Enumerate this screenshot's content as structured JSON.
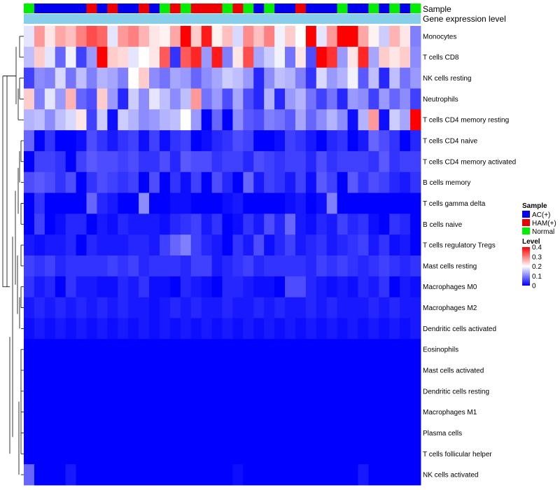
{
  "chart_data": {
    "type": "heatmap",
    "annotation_labels": {
      "sample": "Sample",
      "gene": "Gene expression level"
    },
    "rows": [
      "Monocytes",
      "T cells CD8",
      "NK cells resting",
      "Neutrophils",
      "T cells CD4 memory resting",
      "T cells CD4 naive",
      "T cells CD4 memory activated",
      "B cells memory",
      "T cells gamma delta",
      "B cells naive",
      "T cells regulatory  Tregs",
      "Mast cells resting",
      "Macrophages M0",
      "Macrophages M2",
      "Dendritic cells activated",
      "Eosinophils",
      "Mast cells activated",
      "Dendritic cells resting",
      "Macrophages M1",
      "Plasma cells",
      "T cells follicular helper",
      "NK cells activated"
    ],
    "samples": [
      "Normal",
      "AC(+)",
      "AC(+)",
      "AC(+)",
      "AC(+)",
      "AC(+)",
      "HAM(+)",
      "AC(+)",
      "HAM(+)",
      "AC(+)",
      "AC(+)",
      "HAM(+)",
      "AC(+)",
      "Normal",
      "HAM(+)",
      "Normal",
      "HAM(+)",
      "HAM(+)",
      "HAM(+)",
      "Normal",
      "HAM(+)",
      "Normal",
      "AC(+)",
      "Normal",
      "AC(+)",
      "AC(+)",
      "HAM(+)",
      "AC(+)",
      "AC(+)",
      "AC(+)",
      "Normal",
      "AC(+)",
      "AC(+)",
      "Normal",
      "AC(+)",
      "Normal",
      "AC(+)",
      "Normal"
    ],
    "values": [
      [
        0.18,
        0.28,
        0.22,
        0.27,
        0.25,
        0.3,
        0.34,
        0.32,
        0.18,
        0.28,
        0.3,
        0.26,
        0.22,
        0.21,
        0.27,
        0.4,
        0.24,
        0.38,
        0.21,
        0.25,
        0.17,
        0.29,
        0.25,
        0.3,
        0.19,
        0.24,
        0.2,
        0.4,
        0.18,
        0.28,
        0.41,
        0.43,
        0.27,
        0.21,
        0.16,
        0.26,
        0.22,
        0.1
      ],
      [
        0.15,
        0.24,
        0.18,
        0.08,
        0.19,
        0.05,
        0.12,
        0.4,
        0.24,
        0.23,
        0.18,
        0.2,
        0.22,
        0.33,
        0.04,
        0.33,
        0.37,
        0.12,
        0.38,
        0.1,
        0.22,
        0.34,
        0.13,
        0.16,
        0.19,
        0.09,
        0.22,
        0.06,
        0.4,
        0.36,
        0.12,
        0.22,
        0.37,
        0.13,
        0.24,
        0.22,
        0.24,
        0.11
      ],
      [
        0.05,
        0.11,
        0.1,
        0.17,
        0.09,
        0.15,
        0.1,
        0.14,
        0.13,
        0.1,
        0.2,
        0.24,
        0.11,
        0.09,
        0.13,
        0.12,
        0.08,
        0.11,
        0.13,
        0.16,
        0.15,
        0.12,
        0.03,
        0.11,
        0.15,
        0.14,
        0.1,
        0.04,
        0.17,
        0.12,
        0.14,
        0.19,
        0.07,
        0.15,
        0.03,
        0.15,
        0.09,
        0.12
      ],
      [
        0.24,
        0.1,
        0.18,
        0.12,
        0.26,
        0.08,
        0.06,
        0.24,
        0.12,
        0.03,
        0.16,
        0.11,
        0.18,
        0.15,
        0.11,
        0.15,
        0.28,
        0.09,
        0.12,
        0.06,
        0.13,
        0.06,
        0.03,
        0.14,
        0.03,
        0.12,
        0.14,
        0.09,
        0.05,
        0.09,
        0.03,
        0.12,
        0.11,
        0.05,
        0.12,
        0.08,
        0.11,
        0.05
      ],
      [
        0.14,
        0.15,
        0.11,
        0.15,
        0.17,
        0.22,
        0.05,
        0.16,
        0.01,
        0.16,
        0.14,
        0.11,
        0.12,
        0.14,
        0.15,
        0.2,
        0.12,
        0.0,
        0.08,
        0.0,
        0.11,
        0.07,
        0.06,
        0.1,
        0.09,
        0.07,
        0.13,
        0.08,
        0.11,
        0.14,
        0.11,
        0.01,
        0.14,
        0.28,
        0.01,
        0.16,
        0.13,
        0.4
      ],
      [
        0.08,
        0.0,
        0.04,
        0.0,
        0.0,
        0.01,
        0.06,
        0.04,
        0.02,
        0.04,
        0.05,
        0.01,
        0.05,
        0.01,
        0.04,
        0.05,
        0.0,
        0.01,
        0.03,
        0.04,
        0.06,
        0.05,
        0.0,
        0.0,
        0.01,
        0.05,
        0.04,
        0.02,
        0.0,
        0.03,
        0.04,
        0.0,
        0.02,
        0.08,
        0.06,
        0.04,
        0.0,
        0.03
      ],
      [
        0.0,
        0.05,
        0.05,
        0.04,
        0.0,
        0.05,
        0.07,
        0.06,
        0.06,
        0.05,
        0.06,
        0.04,
        0.04,
        0.06,
        0.03,
        0.07,
        0.06,
        0.06,
        0.04,
        0.05,
        0.05,
        0.03,
        0.06,
        0.05,
        0.04,
        0.05,
        0.05,
        0.03,
        0.06,
        0.04,
        0.05,
        0.05,
        0.05,
        0.04,
        0.07,
        0.04,
        0.05,
        0.05
      ],
      [
        0.06,
        0.07,
        0.06,
        0.04,
        0.06,
        0.0,
        0.04,
        0.06,
        0.05,
        0.04,
        0.05,
        0.0,
        0.06,
        0.0,
        0.04,
        0.01,
        0.05,
        0.0,
        0.06,
        0.03,
        0.0,
        0.08,
        0.02,
        0.05,
        0.04,
        0.02,
        0.05,
        0.01,
        0.07,
        0.05,
        0.0,
        0.07,
        0.04,
        0.06,
        0.05,
        0.03,
        0.02,
        0.04
      ],
      [
        0.0,
        0.04,
        0.0,
        0.0,
        0.0,
        0.0,
        0.08,
        0.03,
        0.02,
        0.0,
        0.0,
        0.11,
        0.0,
        0.0,
        0.01,
        0.01,
        0.0,
        0.0,
        0.0,
        0.01,
        0.02,
        0.0,
        0.0,
        0.0,
        0.0,
        0.01,
        0.02,
        0.0,
        0.01,
        0.1,
        0.0,
        0.0,
        0.0,
        0.0,
        0.0,
        0.0,
        0.0,
        0.0
      ],
      [
        0.0,
        0.05,
        0.0,
        0.01,
        0.03,
        0.03,
        0.0,
        0.02,
        0.01,
        0.03,
        0.02,
        0.02,
        0.02,
        0.01,
        0.03,
        0.04,
        0.05,
        0.02,
        0.04,
        0.0,
        0.01,
        0.04,
        0.02,
        0.06,
        0.03,
        0.08,
        0.02,
        0.01,
        0.03,
        0.02,
        0.05,
        0.03,
        0.04,
        0.01,
        0.0,
        0.04,
        0.03,
        0.0
      ],
      [
        0.02,
        0.01,
        0.02,
        0.02,
        0.03,
        0.0,
        0.03,
        0.02,
        0.02,
        0.02,
        0.03,
        0.03,
        0.02,
        0.05,
        0.08,
        0.1,
        0.05,
        0.03,
        0.02,
        0.0,
        0.04,
        0.02,
        0.06,
        0.01,
        0.03,
        0.05,
        0.02,
        0.03,
        0.04,
        0.02,
        0.03,
        0.04,
        0.05,
        0.02,
        0.04,
        0.01,
        0.02,
        0.0
      ],
      [
        0.05,
        0.04,
        0.05,
        0.03,
        0.04,
        0.04,
        0.04,
        0.04,
        0.05,
        0.04,
        0.05,
        0.03,
        0.04,
        0.04,
        0.04,
        0.03,
        0.05,
        0.05,
        0.02,
        0.03,
        0.04,
        0.05,
        0.03,
        0.04,
        0.04,
        0.04,
        0.04,
        0.03,
        0.05,
        0.04,
        0.05,
        0.04,
        0.03,
        0.04,
        0.05,
        0.04,
        0.03,
        0.04
      ],
      [
        0.04,
        0.02,
        0.03,
        0.0,
        0.04,
        0.02,
        0.02,
        0.01,
        0.01,
        0.03,
        0.02,
        0.04,
        0.01,
        0.01,
        0.0,
        0.03,
        0.02,
        0.01,
        0.0,
        0.03,
        0.03,
        0.02,
        0.01,
        0.01,
        0.0,
        0.06,
        0.06,
        0.03,
        0.02,
        0.01,
        0.02,
        0.01,
        0.03,
        0.02,
        0.04,
        0.0,
        0.02,
        0.01
      ],
      [
        0.02,
        0.03,
        0.02,
        0.03,
        0.02,
        0.03,
        0.02,
        0.03,
        0.02,
        0.03,
        0.02,
        0.02,
        0.01,
        0.02,
        0.03,
        0.02,
        0.03,
        0.02,
        0.02,
        0.03,
        0.02,
        0.02,
        0.03,
        0.02,
        0.03,
        0.02,
        0.02,
        0.03,
        0.02,
        0.03,
        0.02,
        0.02,
        0.02,
        0.03,
        0.02,
        0.03,
        0.02,
        0.02
      ],
      [
        0.01,
        0.02,
        0.01,
        0.02,
        0.01,
        0.02,
        0.01,
        0.02,
        0.01,
        0.02,
        0.01,
        0.02,
        0.01,
        0.02,
        0.01,
        0.02,
        0.01,
        0.02,
        0.01,
        0.02,
        0.01,
        0.02,
        0.01,
        0.02,
        0.01,
        0.02,
        0.01,
        0.02,
        0.01,
        0.02,
        0.01,
        0.02,
        0.01,
        0.02,
        0.01,
        0.02,
        0.01,
        0.02
      ],
      [
        0,
        0,
        0,
        0,
        0,
        0,
        0,
        0,
        0,
        0,
        0,
        0,
        0,
        0,
        0,
        0,
        0,
        0,
        0,
        0,
        0,
        0,
        0,
        0,
        0,
        0,
        0,
        0,
        0,
        0,
        0,
        0,
        0,
        0,
        0,
        0,
        0,
        0
      ],
      [
        0,
        0,
        0,
        0,
        0,
        0,
        0,
        0,
        0,
        0,
        0,
        0,
        0,
        0,
        0,
        0,
        0,
        0,
        0,
        0,
        0,
        0,
        0,
        0,
        0,
        0,
        0,
        0,
        0,
        0,
        0,
        0,
        0,
        0,
        0,
        0,
        0,
        0
      ],
      [
        0,
        0,
        0,
        0,
        0,
        0,
        0,
        0,
        0,
        0,
        0,
        0,
        0,
        0,
        0,
        0,
        0,
        0,
        0,
        0,
        0,
        0,
        0,
        0,
        0,
        0,
        0,
        0,
        0,
        0,
        0,
        0,
        0,
        0,
        0,
        0,
        0,
        0
      ],
      [
        0,
        0,
        0,
        0,
        0,
        0,
        0,
        0,
        0,
        0,
        0,
        0,
        0,
        0,
        0,
        0,
        0,
        0,
        0,
        0,
        0,
        0,
        0,
        0,
        0,
        0,
        0,
        0,
        0,
        0,
        0,
        0,
        0,
        0,
        0,
        0,
        0,
        0
      ],
      [
        0,
        0,
        0,
        0,
        0,
        0,
        0,
        0,
        0,
        0,
        0,
        0,
        0,
        0,
        0,
        0,
        0,
        0,
        0,
        0,
        0,
        0,
        0,
        0,
        0,
        0,
        0,
        0,
        0,
        0,
        0,
        0,
        0,
        0,
        0,
        0,
        0,
        0
      ],
      [
        0,
        0,
        0,
        0,
        0,
        0,
        0,
        0,
        0,
        0,
        0,
        0,
        0,
        0,
        0,
        0,
        0,
        0,
        0,
        0,
        0,
        0,
        0,
        0,
        0,
        0,
        0,
        0,
        0,
        0,
        0,
        0,
        0,
        0,
        0,
        0,
        0,
        0
      ],
      [
        0.08,
        0.0,
        0.0,
        0.0,
        0.02,
        0.0,
        0.0,
        0.0,
        0.0,
        0.0,
        0.0,
        0.0,
        0.0,
        0.0,
        0.0,
        0.0,
        0.0,
        0.0,
        0.0,
        0.0,
        0.01,
        0.0,
        0.0,
        0.0,
        0.0,
        0.0,
        0.0,
        0.0,
        0.0,
        0.0,
        0.0,
        0.0,
        0.02,
        0.0,
        0.0,
        0.0,
        0.0,
        0.0
      ]
    ],
    "legend": {
      "sample_title": "Sample",
      "sample_items": [
        {
          "label": "AC(+)",
          "color": "#0000ee"
        },
        {
          "label": "HAM(+)",
          "color": "#ee0000"
        },
        {
          "label": "Normal",
          "color": "#00ee00"
        }
      ],
      "level_title": "Level",
      "level_ticks": [
        "0.4",
        "0.3",
        "0.2",
        "0.1",
        "0"
      ],
      "level_range": [
        0,
        0.4
      ]
    },
    "colors": {
      "low": "#0000ff",
      "mid": "#ffffff",
      "high": "#ff0000",
      "gene_bar": "#87ceeb"
    }
  }
}
